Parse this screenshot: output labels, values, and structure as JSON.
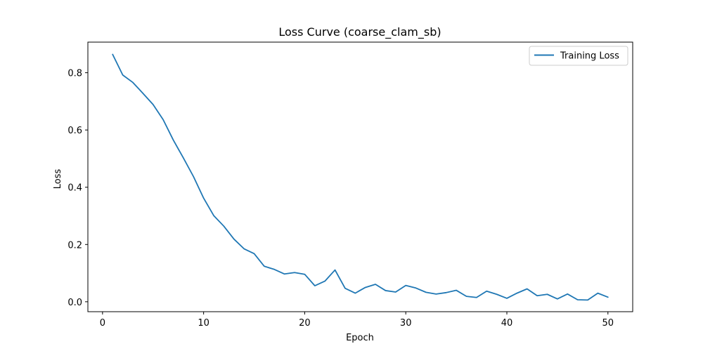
{
  "chart_data": {
    "type": "line",
    "title": "Loss Curve (coarse_clam_sb)",
    "xlabel": "Epoch",
    "ylabel": "Loss",
    "xlim": [
      -1.45,
      52.45
    ],
    "ylim": [
      -0.0347,
      0.9069
    ],
    "xticks": [
      0,
      10,
      20,
      30,
      40,
      50
    ],
    "yticks": [
      0.0,
      0.2,
      0.4,
      0.6,
      0.8
    ],
    "grid": false,
    "legend_position": "top-right",
    "series": [
      {
        "name": "Training Loss",
        "color": "#1f77b4",
        "x": [
          1,
          2,
          3,
          4,
          5,
          6,
          7,
          8,
          9,
          10,
          11,
          12,
          13,
          14,
          15,
          16,
          17,
          18,
          19,
          20,
          21,
          22,
          23,
          24,
          25,
          26,
          27,
          28,
          29,
          30,
          31,
          32,
          33,
          34,
          35,
          36,
          37,
          38,
          39,
          40,
          41,
          42,
          43,
          44,
          45,
          46,
          47,
          48,
          49,
          50
        ],
        "y": [
          0.864,
          0.792,
          0.766,
          0.728,
          0.689,
          0.636,
          0.565,
          0.502,
          0.437,
          0.362,
          0.301,
          0.264,
          0.219,
          0.185,
          0.168,
          0.124,
          0.113,
          0.097,
          0.102,
          0.096,
          0.056,
          0.072,
          0.111,
          0.047,
          0.03,
          0.05,
          0.061,
          0.039,
          0.034,
          0.057,
          0.048,
          0.033,
          0.027,
          0.032,
          0.04,
          0.019,
          0.015,
          0.037,
          0.026,
          0.012,
          0.03,
          0.045,
          0.021,
          0.026,
          0.01,
          0.027,
          0.007,
          0.006,
          0.03,
          0.016
        ]
      }
    ]
  }
}
